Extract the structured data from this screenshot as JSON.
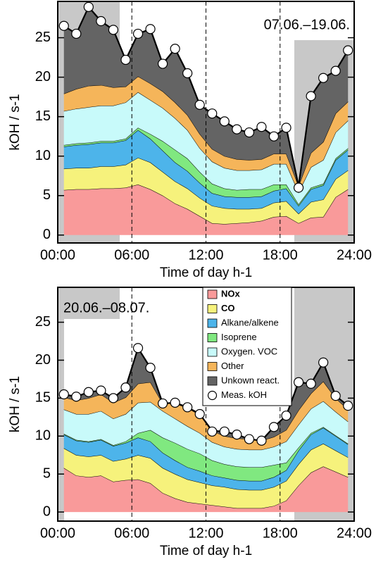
{
  "chart_data": [
    {
      "type": "stacked-area",
      "x_label": "Time of day h-1",
      "y_label": "kOH / s-1",
      "annotation": "07.06.–19.06.",
      "x": [
        0.5,
        1.5,
        2.5,
        3.5,
        4.5,
        5.5,
        6.5,
        7.5,
        8.5,
        9.5,
        10.5,
        11.5,
        12.5,
        13.5,
        14.5,
        15.5,
        16.5,
        17.5,
        18.5,
        19.5,
        20.5,
        21.5,
        22.5,
        23.5
      ],
      "xlim": [
        0,
        24
      ],
      "xticks": [
        {
          "value": 0,
          "label": "00:00"
        },
        {
          "value": 6,
          "label": "06:00"
        },
        {
          "value": 12,
          "label": "12:00"
        },
        {
          "value": 18,
          "label": "18:00"
        },
        {
          "value": 24,
          "label": "24:00"
        }
      ],
      "ylim": [
        -1,
        29.6
      ],
      "yticks": [
        0,
        5,
        10,
        15,
        20,
        25
      ],
      "grid": true,
      "series": [
        {
          "color": "#f99a9a",
          "values": [
            5.7,
            5.8,
            5.8,
            5.9,
            5.9,
            6.0,
            6.4,
            5.8,
            5.0,
            4.0,
            3.3,
            2.4,
            1.5,
            1.4,
            1.5,
            1.6,
            1.8,
            2.3,
            2.4,
            1.5,
            2.2,
            2.3,
            4.8,
            5.8
          ]
        },
        {
          "color": "#f6f27c",
          "values": [
            2.7,
            2.7,
            2.7,
            2.8,
            2.8,
            2.9,
            3.4,
            3.4,
            3.0,
            2.8,
            2.6,
            2.3,
            2.2,
            2.0,
            1.8,
            1.7,
            1.6,
            1.8,
            1.9,
            1.2,
            2.0,
            2.2,
            2.3,
            2.4
          ]
        },
        {
          "color": "#4db4ea",
          "values": [
            2.8,
            2.9,
            3.0,
            3.0,
            3.0,
            3.1,
            3.5,
            3.0,
            2.7,
            2.4,
            2.2,
            1.9,
            1.6,
            1.5,
            1.5,
            1.5,
            1.5,
            1.5,
            1.6,
            1.0,
            1.6,
            1.8,
            2.4,
            2.6
          ]
        },
        {
          "color": "#80e880",
          "values": [
            0.2,
            0.2,
            0.2,
            0.2,
            0.2,
            0.2,
            0.3,
            0.6,
            1.2,
            1.6,
            1.6,
            1.4,
            1.2,
            1.0,
            0.9,
            1.0,
            0.9,
            0.8,
            0.5,
            0.2,
            0.2,
            0.2,
            0.2,
            0.2
          ]
        },
        {
          "color": "#c8fafa",
          "values": [
            4.3,
            4.4,
            4.5,
            4.5,
            4.5,
            4.6,
            4.5,
            4.3,
            4.2,
            4.0,
            3.6,
            3.0,
            2.8,
            2.6,
            2.5,
            2.4,
            2.5,
            2.6,
            2.6,
            1.5,
            2.6,
            3.0,
            3.3,
            3.5
          ]
        },
        {
          "color": "#f5b55a",
          "values": [
            2.2,
            2.5,
            2.7,
            2.6,
            2.3,
            2.0,
            2.0,
            2.1,
            2.1,
            2.0,
            1.9,
            1.8,
            1.6,
            1.5,
            1.4,
            1.3,
            1.3,
            1.3,
            1.3,
            0.8,
            1.8,
            2.3,
            2.4,
            2.4
          ]
        },
        {
          "color": "#646464",
          "values": [
            8.6,
            7.0,
            10.0,
            8.1,
            7.3,
            3.4,
            5.4,
            6.9,
            3.5,
            6.8,
            5.3,
            3.7,
            4.5,
            4.4,
            3.8,
            3.5,
            4.1,
            2.2,
            3.3,
            0,
            7.2,
            8.1,
            5.4,
            6.5
          ]
        }
      ],
      "measured": {
        "values": [
          26.5,
          25.5,
          28.9,
          27.1,
          26.0,
          22.2,
          25.5,
          26.1,
          21.7,
          23.6,
          20.5,
          16.5,
          15.4,
          14.4,
          13.4,
          13.0,
          13.7,
          12.5,
          13.6,
          6.0,
          17.6,
          19.9,
          20.8,
          23.4
        ]
      }
    },
    {
      "type": "stacked-area",
      "x_label": "Time of day h-1",
      "y_label": "kOH / s-1",
      "annotation": "20.06.–08.07.",
      "legend": "upper center",
      "x": [
        0.5,
        1.5,
        2.5,
        3.5,
        4.5,
        5.5,
        6.5,
        7.5,
        8.5,
        9.5,
        10.5,
        11.5,
        12.5,
        13.5,
        14.5,
        15.5,
        16.5,
        17.5,
        18.5,
        19.5,
        20.5,
        21.5,
        22.5,
        23.5
      ],
      "xlim": [
        0,
        24
      ],
      "xticks": [
        {
          "value": 0,
          "label": "00:00"
        },
        {
          "value": 6,
          "label": "06:00"
        },
        {
          "value": 12,
          "label": "12:00"
        },
        {
          "value": 18,
          "label": "18:00"
        },
        {
          "value": 24,
          "label": "24:00"
        }
      ],
      "ylim": [
        -1.2,
        29.6
      ],
      "yticks": [
        0,
        5,
        10,
        15,
        20,
        25
      ],
      "grid": true,
      "series": [
        {
          "name": "NOx",
          "color": "#f99a9a",
          "values": [
            5.8,
            4.8,
            4.6,
            4.8,
            4.0,
            4.2,
            4.3,
            3.8,
            2.5,
            1.8,
            1.3,
            1.1,
            0.9,
            0.7,
            0.5,
            0.5,
            0.5,
            0.8,
            1.5,
            3.5,
            5.2,
            6.0,
            5.3,
            4.6
          ]
        },
        {
          "name": "CO",
          "color": "#f6f27c",
          "values": [
            2.6,
            2.7,
            2.7,
            2.7,
            2.7,
            2.8,
            3.2,
            3.3,
            3.3,
            3.2,
            3.0,
            2.8,
            2.6,
            2.6,
            2.5,
            2.4,
            2.4,
            2.5,
            2.6,
            2.8,
            3.0,
            3.0,
            2.8,
            2.6
          ]
        },
        {
          "name": "Alkane/alkene",
          "color": "#4db4ea",
          "values": [
            1.8,
            1.9,
            1.9,
            2.0,
            2.0,
            2.1,
            2.3,
            2.2,
            2.0,
            1.8,
            1.6,
            1.5,
            1.3,
            1.2,
            1.2,
            1.2,
            1.2,
            1.3,
            1.4,
            1.8,
            2.0,
            2.1,
            1.9,
            1.7
          ]
        },
        {
          "name": "Isoprene",
          "color": "#80e880",
          "values": [
            0.1,
            0.1,
            0.1,
            0.1,
            0.1,
            0.2,
            0.6,
            1.5,
            2.0,
            2.3,
            2.4,
            2.3,
            2.0,
            1.8,
            1.8,
            1.8,
            1.8,
            1.6,
            1.0,
            0.4,
            0.2,
            0.1,
            0.1,
            0.1
          ]
        },
        {
          "name": "Oxygen. VOC",
          "color": "#c8fafa",
          "values": [
            3.2,
            3.4,
            3.6,
            3.7,
            3.5,
            3.6,
            4.0,
            3.7,
            3.5,
            3.2,
            3.0,
            2.7,
            2.4,
            2.3,
            2.3,
            2.3,
            2.3,
            2.4,
            2.8,
            3.0,
            3.2,
            3.4,
            3.1,
            2.9
          ]
        },
        {
          "name": "Other",
          "color": "#f5b55a",
          "values": [
            1.6,
            1.8,
            2.1,
            2.2,
            2.1,
            2.2,
            2.5,
            2.6,
            1.0,
            2.0,
            2.4,
            2.4,
            1.5,
            1.4,
            1.4,
            1.4,
            1.2,
            1.3,
            1.5,
            1.9,
            2.0,
            2.6,
            1.8,
            1.6
          ]
        },
        {
          "name": "Unkown react.",
          "color": "#646464",
          "values": [
            0.4,
            0.5,
            0.8,
            0.5,
            0.6,
            1.3,
            4.7,
            1.9,
            0,
            0.1,
            0.1,
            0.1,
            0,
            0.6,
            0.5,
            0,
            0,
            1.3,
            1.9,
            3.7,
            1.3,
            2.5,
            0.3,
            0.5
          ]
        }
      ],
      "measured": {
        "name": "Meas. kOH",
        "values": [
          15.5,
          15.2,
          15.8,
          16.0,
          15.0,
          16.4,
          21.6,
          19.0,
          14.3,
          14.4,
          13.8,
          12.9,
          10.6,
          10.6,
          10.2,
          9.6,
          9.4,
          11.2,
          12.7,
          17.1,
          16.9,
          19.7,
          15.3,
          14.0
        ]
      }
    }
  ]
}
